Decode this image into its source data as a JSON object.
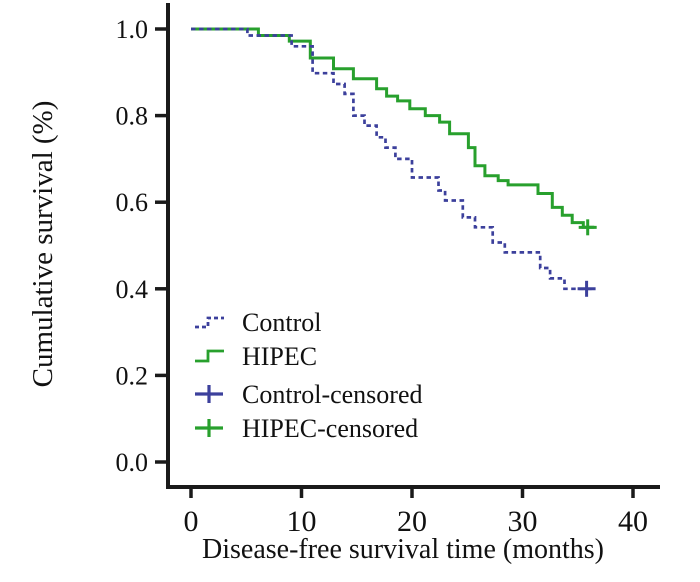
{
  "figure": {
    "background": "#ffffff",
    "axis_color": "#1a1a1a",
    "text_color": "#111111"
  },
  "chart_data": {
    "type": "line",
    "subtype": "kaplan-meier-step-survival",
    "title": "",
    "xlabel": "Disease-free survival time (months)",
    "ylabel": "Cumulative survival (%)",
    "xlim": [
      0,
      40
    ],
    "ylim": [
      0.0,
      1.0
    ],
    "xticks": [
      0,
      10,
      20,
      30,
      40
    ],
    "yticks": [
      "0.0",
      "0.2",
      "0.4",
      "0.6",
      "0.8",
      "1.0"
    ],
    "grid": false,
    "legend_position": "inside-lower-left",
    "series": [
      {
        "name": "HIPEC",
        "color": "#28a02d",
        "style": "solid",
        "points": [
          [
            0,
            1.0
          ],
          [
            6.1,
            0.985
          ],
          [
            8.9,
            0.972
          ],
          [
            10.8,
            0.933
          ],
          [
            12.9,
            0.908
          ],
          [
            14.7,
            0.885
          ],
          [
            16.8,
            0.862
          ],
          [
            17.7,
            0.845
          ],
          [
            18.7,
            0.834
          ],
          [
            19.8,
            0.816
          ],
          [
            21.2,
            0.8
          ],
          [
            22.5,
            0.785
          ],
          [
            23.4,
            0.758
          ],
          [
            25.1,
            0.726
          ],
          [
            25.7,
            0.684
          ],
          [
            26.6,
            0.661
          ],
          [
            27.8,
            0.65
          ],
          [
            28.7,
            0.64
          ],
          [
            31.4,
            0.62
          ],
          [
            32.7,
            0.588
          ],
          [
            33.6,
            0.57
          ],
          [
            34.5,
            0.553
          ],
          [
            35.5,
            0.542
          ]
        ],
        "end_month": 36.5,
        "censored": [
          [
            35.9,
            0.542
          ]
        ]
      },
      {
        "name": "Control",
        "color": "#3c409c",
        "style": "dashed",
        "points": [
          [
            0,
            1.0
          ],
          [
            5.1,
            0.985
          ],
          [
            9.1,
            0.96
          ],
          [
            11.0,
            0.898
          ],
          [
            12.9,
            0.873
          ],
          [
            13.9,
            0.85
          ],
          [
            14.7,
            0.8
          ],
          [
            15.7,
            0.777
          ],
          [
            16.8,
            0.75
          ],
          [
            17.6,
            0.726
          ],
          [
            18.5,
            0.7
          ],
          [
            20.0,
            0.657
          ],
          [
            22.4,
            0.627
          ],
          [
            23.0,
            0.604
          ],
          [
            24.6,
            0.565
          ],
          [
            25.7,
            0.542
          ],
          [
            27.3,
            0.507
          ],
          [
            28.4,
            0.484
          ],
          [
            31.6,
            0.448
          ],
          [
            32.5,
            0.424
          ],
          [
            33.8,
            0.4
          ]
        ],
        "end_month": 36.5,
        "censored": [
          [
            35.8,
            0.4
          ]
        ]
      }
    ],
    "legend": [
      {
        "label": "Control",
        "symbol": "dashed-step",
        "color": "#3c409c"
      },
      {
        "label": "HIPEC",
        "symbol": "solid-step",
        "color": "#28a02d"
      },
      {
        "label": "Control-censored",
        "symbol": "plus",
        "color": "#3c409c"
      },
      {
        "label": "HIPEC-censored",
        "symbol": "plus",
        "color": "#28a02d"
      }
    ]
  }
}
